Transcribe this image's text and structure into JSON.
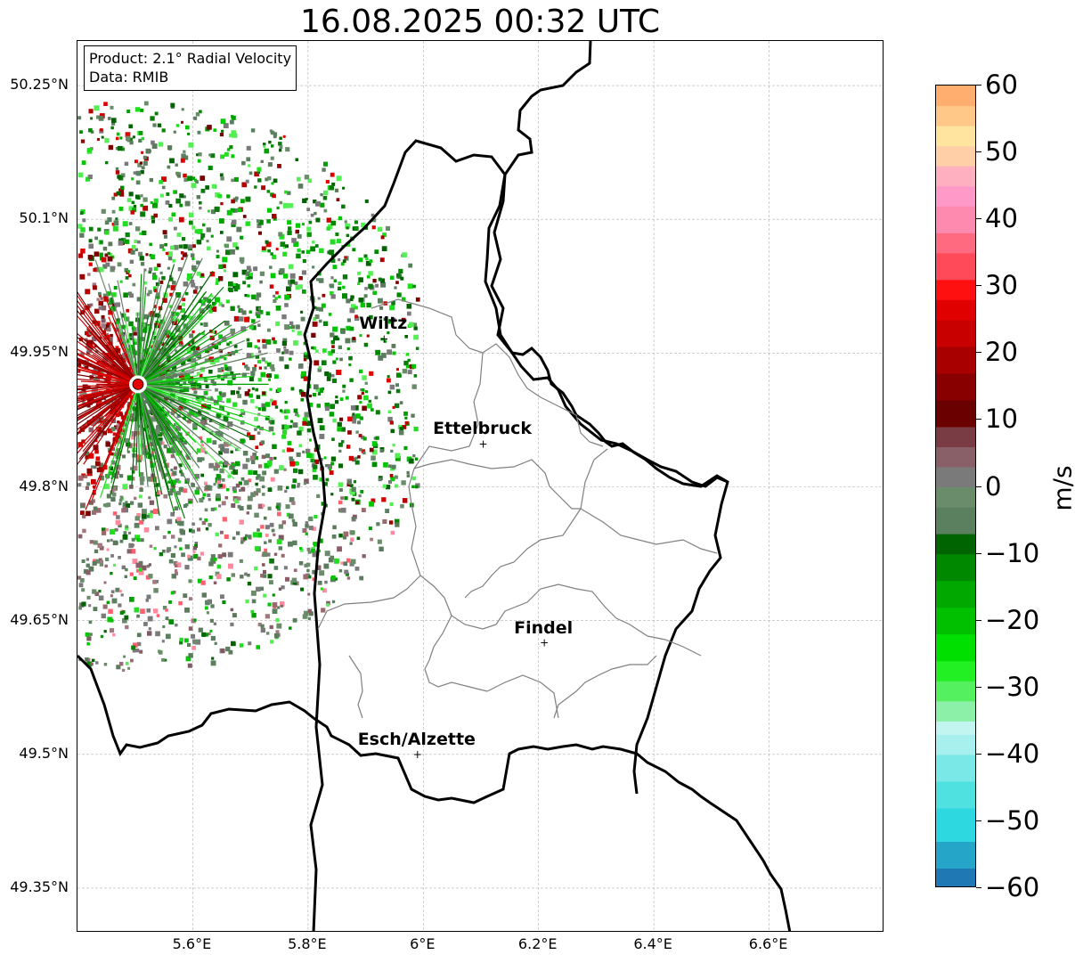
{
  "title": "16.08.2025 00:32 UTC",
  "info": {
    "product": "Product: 2.1° Radial Velocity",
    "data": "Data: RMIB"
  },
  "map": {
    "extent": {
      "lon": [
        5.4,
        6.8
      ],
      "lat": [
        49.3,
        50.3
      ]
    },
    "lat_ticks": [
      {
        "value": 50.25,
        "label": "50.25°N"
      },
      {
        "value": 50.1,
        "label": "50.1°N"
      },
      {
        "value": 49.95,
        "label": "49.95°N"
      },
      {
        "value": 49.8,
        "label": "49.8°N"
      },
      {
        "value": 49.65,
        "label": "49.65°N"
      },
      {
        "value": 49.5,
        "label": "49.5°N"
      },
      {
        "value": 49.35,
        "label": "49.35°N"
      }
    ],
    "lon_ticks": [
      {
        "value": 5.6,
        "label": "5.6°E"
      },
      {
        "value": 5.8,
        "label": "5.8°E"
      },
      {
        "value": 6.0,
        "label": "6°E"
      },
      {
        "value": 6.2,
        "label": "6.2°E"
      },
      {
        "value": 6.4,
        "label": "6.4°E"
      },
      {
        "value": 6.6,
        "label": "6.6°E"
      }
    ],
    "radar_site": {
      "lon": 5.505,
      "lat": 49.915
    },
    "cities": [
      {
        "name": "Wiltz",
        "lon": 5.932,
        "lat": 49.966
      },
      {
        "name": "Ettelbruck",
        "lon": 6.104,
        "lat": 49.848
      },
      {
        "name": "Findel",
        "lon": 6.21,
        "lat": 49.625
      },
      {
        "name": "Esch/Alzette",
        "lon": 5.99,
        "lat": 49.5
      }
    ]
  },
  "colorbar": {
    "unit": "m/s",
    "min": -60,
    "max": 60,
    "ticks": [
      {
        "value": 60,
        "label": "60"
      },
      {
        "value": 50,
        "label": "50"
      },
      {
        "value": 40,
        "label": "40"
      },
      {
        "value": 30,
        "label": "30"
      },
      {
        "value": 20,
        "label": "20"
      },
      {
        "value": 10,
        "label": "10"
      },
      {
        "value": 0,
        "label": "0"
      },
      {
        "value": -10,
        "label": "−10"
      },
      {
        "value": -20,
        "label": "−20"
      },
      {
        "value": -30,
        "label": "−30"
      },
      {
        "value": -40,
        "label": "−40"
      },
      {
        "value": -50,
        "label": "−50"
      },
      {
        "value": -60,
        "label": "−60"
      }
    ],
    "colors": {
      "land_border": "#000000",
      "canton_border": "#808080",
      "grid": "#b0b0b0",
      "radar_site": "#e00000"
    }
  }
}
